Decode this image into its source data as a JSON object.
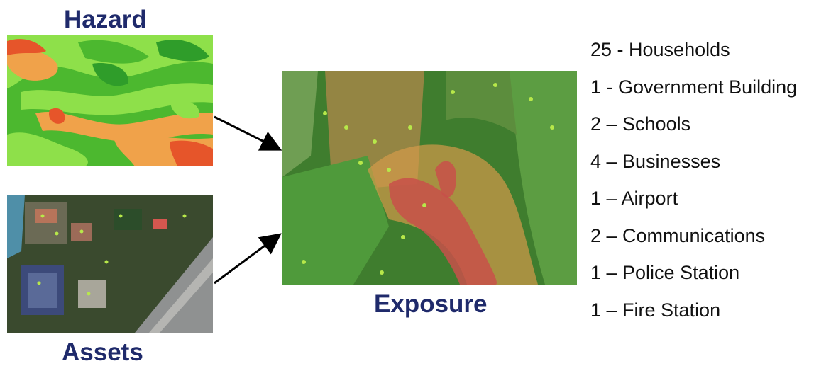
{
  "titles": {
    "hazard": "Hazard",
    "assets": "Assets",
    "exposure": "Exposure"
  },
  "exposure_list": [
    "25 -  Households",
    "1 - Government Building",
    "2 – Schools",
    "4 – Businesses",
    "1 – Airport",
    "2 – Communications",
    "1 – Police Station",
    "1 – Fire Station"
  ],
  "colors": {
    "title": "#1f2a6b",
    "hazard_low": "#4cb82f",
    "hazard_mid": "#8ee04a",
    "hazard_high": "#f0a24a",
    "hazard_max": "#e6552a",
    "exposure_red": "#c8504a",
    "asset_marker": "#b7e84a"
  }
}
